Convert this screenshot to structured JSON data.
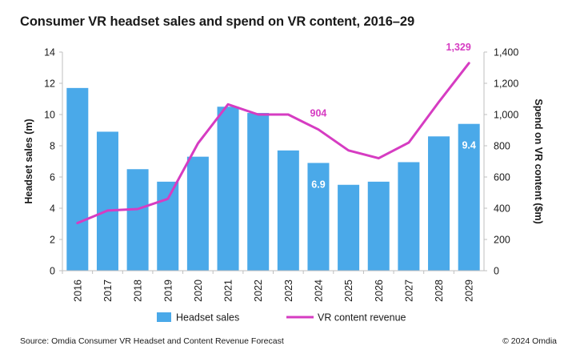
{
  "title": "Consumer VR headset sales and spend on VR content, 2016–29",
  "source": "Source: Omdia Consumer VR Headset and Content Revenue Forecast",
  "copyright": "© 2024 Omdia",
  "chart_data": {
    "type": "bar",
    "categories": [
      "2016",
      "2017",
      "2018",
      "2019",
      "2020",
      "2021",
      "2022",
      "2023",
      "2024",
      "2025",
      "2026",
      "2027",
      "2028",
      "2029"
    ],
    "series": [
      {
        "name": "Headset sales",
        "type": "bar",
        "axis": "left",
        "color": "#4aa9e9",
        "values": [
          11.7,
          8.9,
          6.5,
          5.7,
          7.3,
          10.5,
          10.1,
          7.7,
          6.9,
          5.5,
          5.7,
          6.95,
          8.6,
          9.4
        ]
      },
      {
        "name": "VR content revenue",
        "type": "line",
        "axis": "right",
        "color": "#d63cc2",
        "values": [
          305,
          385,
          395,
          460,
          815,
          1065,
          1000,
          1000,
          904,
          770,
          720,
          820,
          1080,
          1329
        ]
      }
    ],
    "data_labels": [
      {
        "series": 0,
        "index": 8,
        "text": "6.9"
      },
      {
        "series": 0,
        "index": 13,
        "text": "9.4"
      },
      {
        "series": 1,
        "index": 8,
        "text": "904"
      },
      {
        "series": 1,
        "index": 13,
        "text": "1,329"
      }
    ],
    "ylabel": "Headset sales (m)",
    "ylim": [
      0,
      14
    ],
    "yticks": [
      "0",
      "2",
      "4",
      "6",
      "8",
      "10",
      "12",
      "14"
    ],
    "ylabel_right": "Spend on VR content ($m)",
    "ylim_right": [
      0,
      1400
    ],
    "yticks_right": [
      "0",
      "200",
      "400",
      "600",
      "800",
      "1,000",
      "1,200",
      "1,400"
    ],
    "grid": false,
    "legend": "bottom"
  }
}
